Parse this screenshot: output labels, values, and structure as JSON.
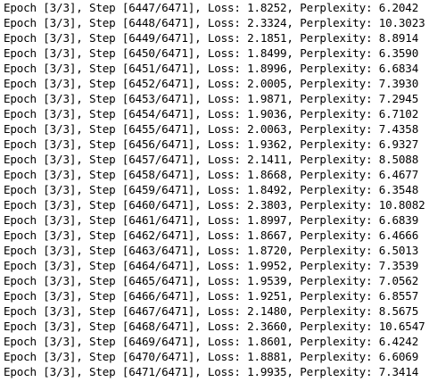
{
  "console": {
    "lines": [
      "Epoch [3/3], Step [6447/6471], Loss: 1.8252, Perplexity: 6.2042",
      "Epoch [3/3], Step [6448/6471], Loss: 2.3324, Perplexity: 10.3023",
      "Epoch [3/3], Step [6449/6471], Loss: 2.1851, Perplexity: 8.8914",
      "Epoch [3/3], Step [6450/6471], Loss: 1.8499, Perplexity: 6.3590",
      "Epoch [3/3], Step [6451/6471], Loss: 1.8996, Perplexity: 6.6834",
      "Epoch [3/3], Step [6452/6471], Loss: 2.0005, Perplexity: 7.3930",
      "Epoch [3/3], Step [6453/6471], Loss: 1.9871, Perplexity: 7.2945",
      "Epoch [3/3], Step [6454/6471], Loss: 1.9036, Perplexity: 6.7102",
      "Epoch [3/3], Step [6455/6471], Loss: 2.0063, Perplexity: 7.4358",
      "Epoch [3/3], Step [6456/6471], Loss: 1.9362, Perplexity: 6.9327",
      "Epoch [3/3], Step [6457/6471], Loss: 2.1411, Perplexity: 8.5088",
      "Epoch [3/3], Step [6458/6471], Loss: 1.8668, Perplexity: 6.4677",
      "Epoch [3/3], Step [6459/6471], Loss: 1.8492, Perplexity: 6.3548",
      "Epoch [3/3], Step [6460/6471], Loss: 2.3803, Perplexity: 10.8082",
      "Epoch [3/3], Step [6461/6471], Loss: 1.8997, Perplexity: 6.6839",
      "Epoch [3/3], Step [6462/6471], Loss: 1.8667, Perplexity: 6.4666",
      "Epoch [3/3], Step [6463/6471], Loss: 1.8720, Perplexity: 6.5013",
      "Epoch [3/3], Step [6464/6471], Loss: 1.9952, Perplexity: 7.3539",
      "Epoch [3/3], Step [6465/6471], Loss: 1.9539, Perplexity: 7.0562",
      "Epoch [3/3], Step [6466/6471], Loss: 1.9251, Perplexity: 6.8557",
      "Epoch [3/3], Step [6467/6471], Loss: 2.1480, Perplexity: 8.5675",
      "Epoch [3/3], Step [6468/6471], Loss: 2.3660, Perplexity: 10.6547",
      "Epoch [3/3], Step [6469/6471], Loss: 1.8601, Perplexity: 6.4242",
      "Epoch [3/3], Step [6470/6471], Loss: 1.8881, Perplexity: 6.6069",
      "Epoch [3/3], Step [6471/6471], Loss: 1.9935, Perplexity: 7.3414"
    ]
  },
  "colors": {
    "background": "#ffffff",
    "text": "#000000"
  }
}
